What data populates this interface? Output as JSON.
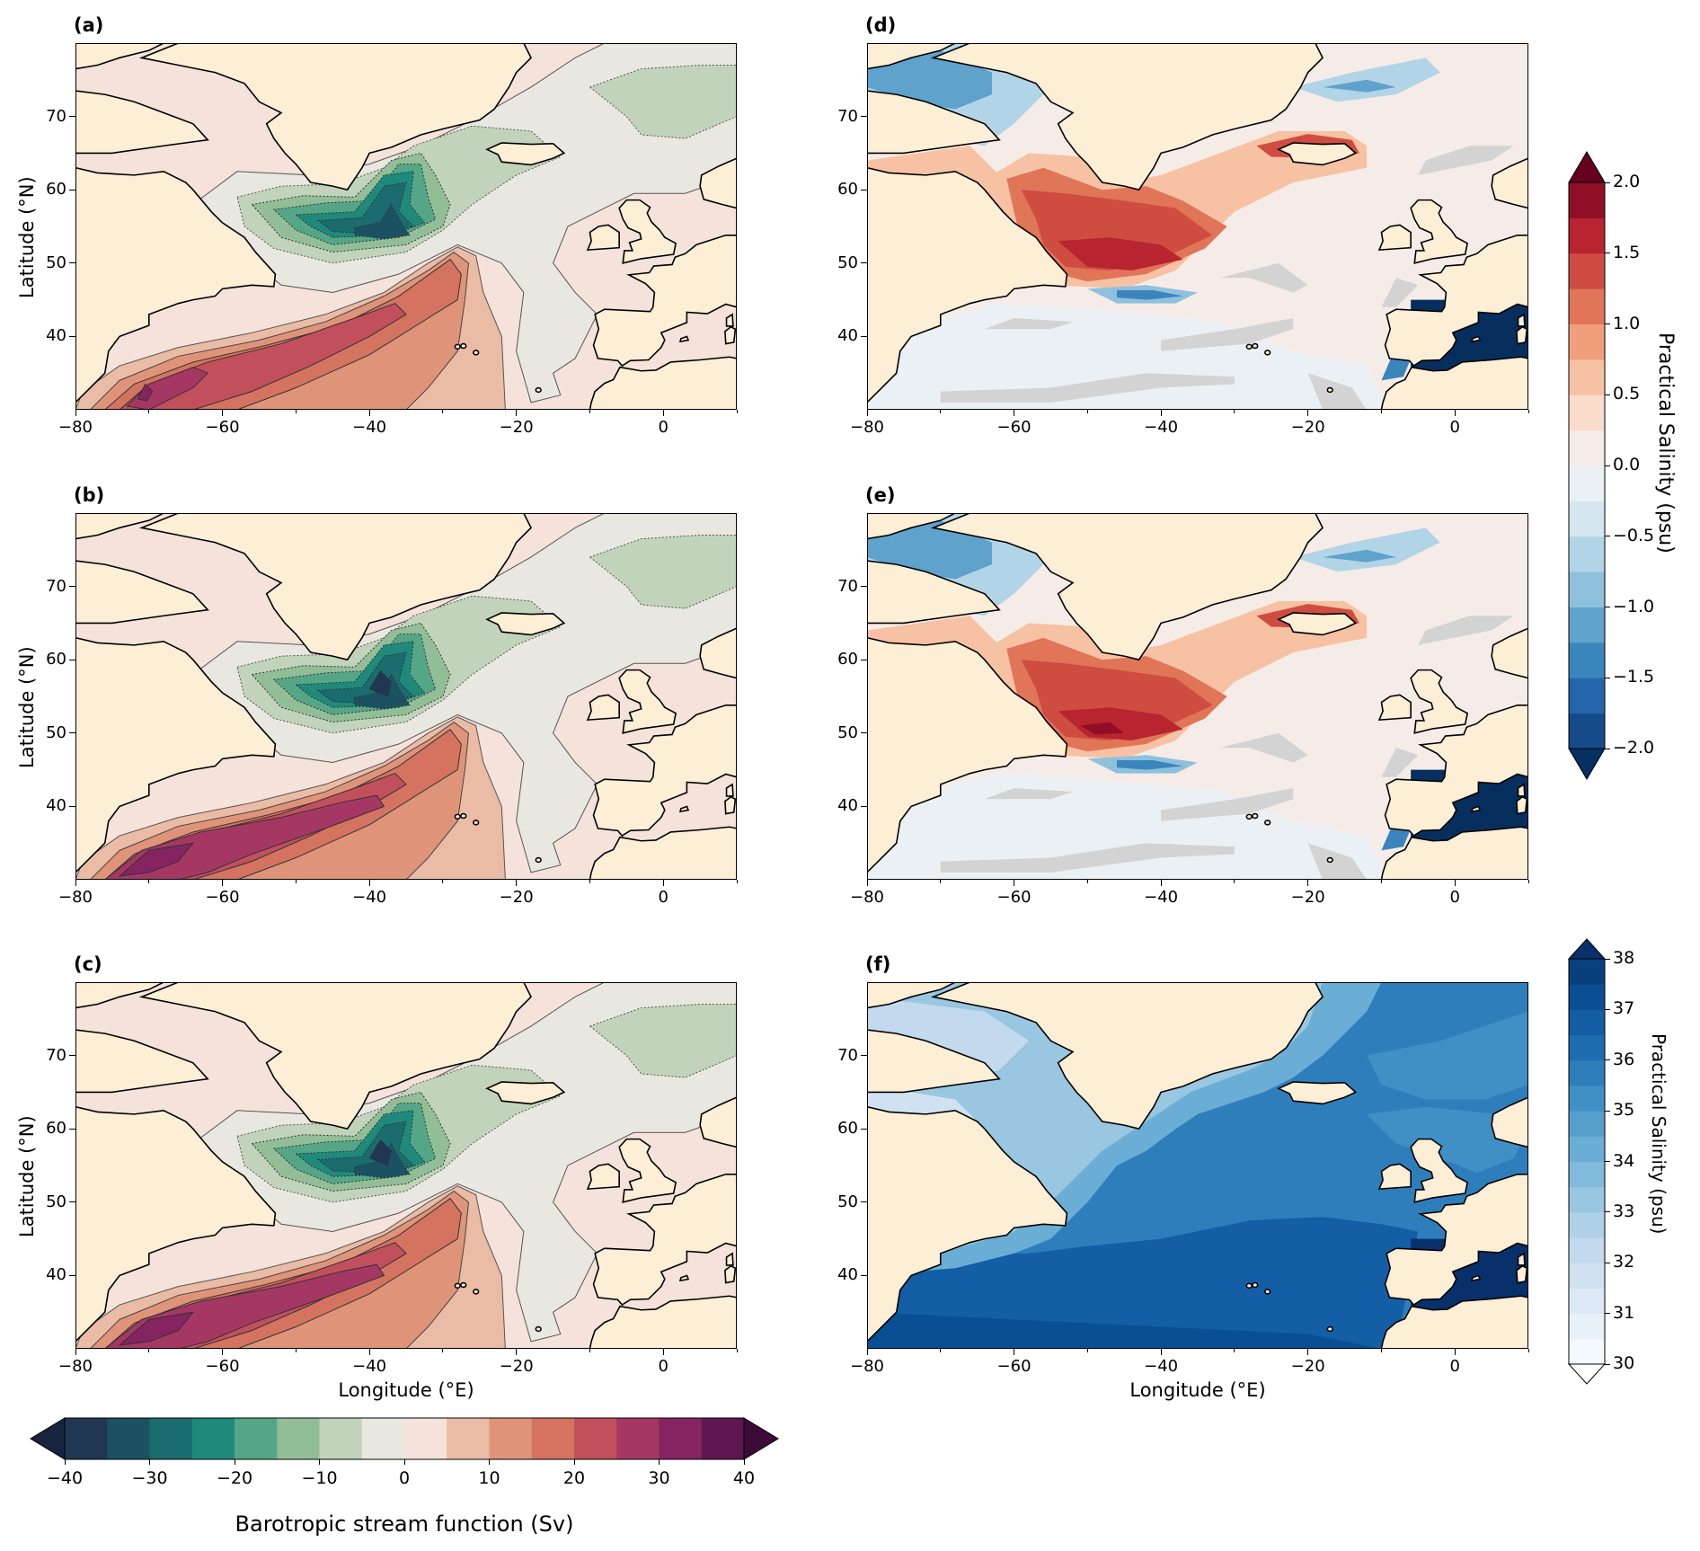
{
  "chart_data": {
    "type": "heatmap",
    "xlabel": "Longitude (°E)",
    "ylabel": "Latitude (°N)",
    "xlim": [
      -80,
      10
    ],
    "ylim": [
      30,
      80
    ],
    "xticks": [
      {
        "value": -80,
        "label": "−80"
      },
      {
        "value": -60,
        "label": "−60"
      },
      {
        "value": -40,
        "label": "−40"
      },
      {
        "value": -20,
        "label": "−20"
      },
      {
        "value": 0,
        "label": "0"
      }
    ],
    "yticks": [
      {
        "value": 40,
        "label": "40"
      },
      {
        "value": 50,
        "label": "50"
      },
      {
        "value": 60,
        "label": "60"
      },
      {
        "value": 70,
        "label": "70"
      }
    ],
    "panels": [
      {
        "id": "a",
        "label": "(a)",
        "field": "streamfunction"
      },
      {
        "id": "b",
        "label": "(b)",
        "field": "streamfunction"
      },
      {
        "id": "c",
        "label": "(c)",
        "field": "streamfunction"
      },
      {
        "id": "d",
        "label": "(d)",
        "field": "salinity_anomaly"
      },
      {
        "id": "e",
        "label": "(e)",
        "field": "salinity_anomaly"
      },
      {
        "id": "f",
        "label": "(f)",
        "field": "salinity"
      }
    ],
    "colorbars": {
      "streamfunction": {
        "label": "Barotropic stream function (Sv)",
        "range": [
          -40,
          40
        ],
        "ticks": [
          {
            "value": -40,
            "label": "−40"
          },
          {
            "value": -30,
            "label": "−30"
          },
          {
            "value": -20,
            "label": "−20"
          },
          {
            "value": -10,
            "label": "−10"
          },
          {
            "value": 0,
            "label": "0"
          },
          {
            "value": 10,
            "label": "10"
          },
          {
            "value": 20,
            "label": "20"
          },
          {
            "value": 30,
            "label": "30"
          },
          {
            "value": 40,
            "label": "40"
          }
        ],
        "colors": [
          "#1f3752",
          "#1c5163",
          "#1a6c6f",
          "#1f8a7b",
          "#55a686",
          "#92be97",
          "#c2d3bb",
          "#e9e8e0",
          "#f4e2db",
          "#eabba5",
          "#df9479",
          "#d47360",
          "#c1505c",
          "#a53863",
          "#852461",
          "#5e1650"
        ],
        "under": "#17243d",
        "over": "#3c0b38"
      },
      "salinity_anomaly": {
        "label": "Practical Salinity (psu)",
        "range": [
          -2.0,
          2.0
        ],
        "ticks": [
          {
            "value": 2.0,
            "label": "2.0"
          },
          {
            "value": 1.5,
            "label": "1.5"
          },
          {
            "value": 1.0,
            "label": "1.0"
          },
          {
            "value": 0.5,
            "label": "0.5"
          },
          {
            "value": 0.0,
            "label": "0.0"
          },
          {
            "value": -0.5,
            "label": "−0.5"
          },
          {
            "value": -1.0,
            "label": "−1.0"
          },
          {
            "value": -1.5,
            "label": "−1.5"
          },
          {
            "value": -2.0,
            "label": "−2.0"
          }
        ],
        "colors": [
          "#164b8a",
          "#2466a9",
          "#3b85bd",
          "#5fa2cc",
          "#8ec1dc",
          "#b2d4e7",
          "#d6e6f0",
          "#ebf0f4",
          "#f6ece7",
          "#fadccb",
          "#f7c1a4",
          "#f09f7c",
          "#e07558",
          "#cf4c40",
          "#b8242f",
          "#900f26"
        ],
        "under": "#053061",
        "over": "#67001f"
      },
      "salinity": {
        "label": "Practical Salinity (psu)",
        "range": [
          30,
          38
        ],
        "ticks": [
          {
            "value": 38,
            "label": "38"
          },
          {
            "value": 37,
            "label": "37"
          },
          {
            "value": 36,
            "label": "36"
          },
          {
            "value": 35,
            "label": "35"
          },
          {
            "value": 34,
            "label": "34"
          },
          {
            "value": 33,
            "label": "33"
          },
          {
            "value": 32,
            "label": "32"
          },
          {
            "value": 31,
            "label": "31"
          },
          {
            "value": 30,
            "label": "30"
          }
        ],
        "colors": [
          "#f4f9fe",
          "#e8f1fa",
          "#dde9f6",
          "#d0e2f2",
          "#c2d9ee",
          "#afd1e7",
          "#99c6e0",
          "#82badb",
          "#6aaed6",
          "#559fcd",
          "#4090c5",
          "#2f7ebc",
          "#1f6db1",
          "#135ea4",
          "#0a4e93",
          "#08407e"
        ],
        "under": "#ffffff",
        "over": "#08306b"
      }
    }
  }
}
